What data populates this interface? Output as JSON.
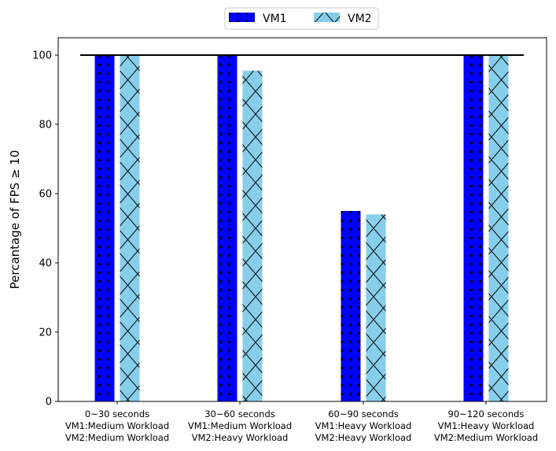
{
  "chart_data": {
    "type": "bar",
    "categories": [
      [
        "0~30 seconds",
        "VM1:Medium Workload",
        "VM2:Medium Workload"
      ],
      [
        "30~60 seconds",
        "VM1:Medium Workload",
        "VM2:Heavy Workload"
      ],
      [
        "60~90 seconds",
        "VM1:Heavy Workload",
        "VM2:Heavy Workload"
      ],
      [
        "90~120 seconds",
        "VM1:Heavy Workload",
        "VM2:Medium Workload"
      ]
    ],
    "series": [
      {
        "name": "VM1",
        "values": [
          100,
          100,
          55,
          100
        ],
        "color": "#0000ff",
        "hatch": "dots"
      },
      {
        "name": "VM2",
        "values": [
          100,
          95.5,
          54,
          100
        ],
        "color": "#87ceeb",
        "hatch": "cross"
      }
    ],
    "xlabel": "",
    "ylabel": "Percantage of FPS  ≥  10",
    "ylim": [
      0,
      105
    ],
    "yticks": [
      0,
      20,
      40,
      60,
      80,
      100
    ],
    "reference_line": 100,
    "legend_placement": "top-center",
    "grid": false
  }
}
